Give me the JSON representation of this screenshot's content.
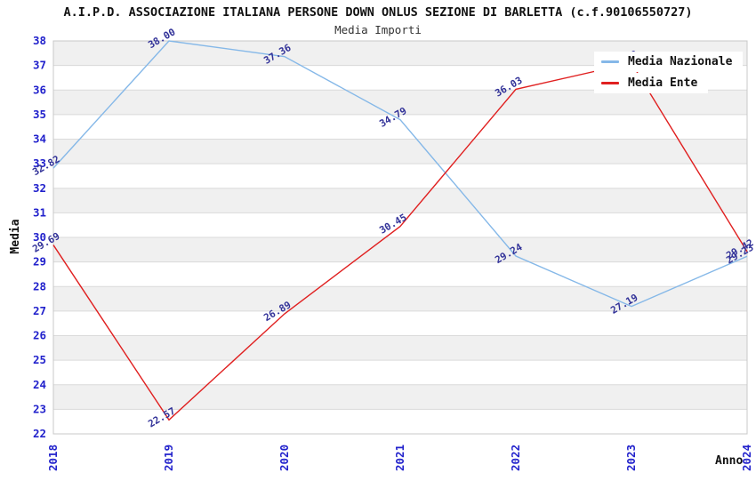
{
  "header": {
    "title": "A.I.P.D. ASSOCIAZIONE ITALIANA PERSONE DOWN ONLUS SEZIONE DI BARLETTA (c.f.90106550727)",
    "subtitle": "Media Importi"
  },
  "chart_data": {
    "type": "line",
    "x": [
      "2018",
      "2019",
      "2020",
      "2021",
      "2022",
      "2023",
      "2024"
    ],
    "series": [
      {
        "name": "Media Nazionale",
        "color": "#85b8e8",
        "values": [
          32.82,
          38.0,
          37.36,
          34.79,
          29.24,
          27.19,
          29.23
        ]
      },
      {
        "name": "Media Ente",
        "color": "#e02020",
        "values": [
          29.69,
          22.57,
          26.89,
          30.45,
          36.03,
          37.1,
          29.42
        ]
      }
    ],
    "xlabel": "Anno",
    "ylabel": "Media",
    "ylim": [
      22,
      38
    ],
    "ytick_step": 1,
    "legend_position": "top-right",
    "grid": true,
    "band_color": "#f0f0f0",
    "grid_color": "#dadada",
    "border_color": "#c8c8c8",
    "tick_color": "#2222cc",
    "point_label_color": "#333399"
  }
}
